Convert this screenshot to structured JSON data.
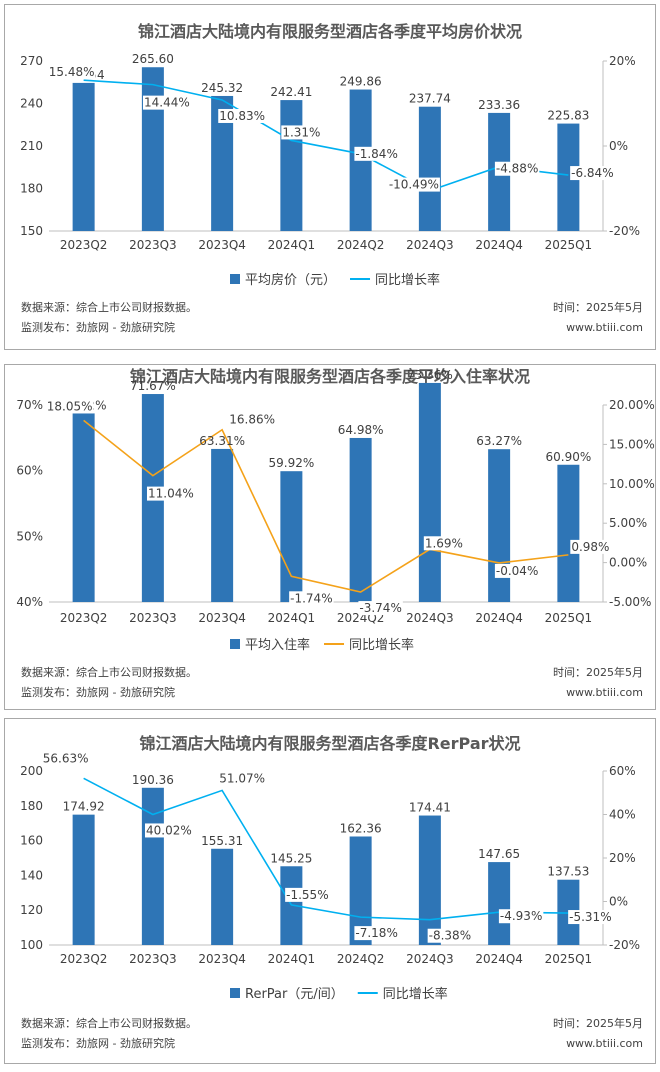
{
  "chart_data": [
    {
      "type": "bar",
      "title": "锦江酒店大陆境内有限服务型酒店各季度平均房价状况",
      "categories": [
        "2023Q2",
        "2023Q3",
        "2023Q4",
        "2024Q1",
        "2024Q2",
        "2024Q3",
        "2024Q4",
        "2025Q1"
      ],
      "series": [
        {
          "name": "平均房价（元）",
          "type": "bar",
          "axis": "left",
          "color": "#2e75b6",
          "values": [
            254.54,
            265.6,
            245.32,
            242.41,
            249.86,
            237.74,
            233.36,
            225.83
          ],
          "labels": [
            "254.54",
            "265.60",
            "245.32",
            "242.41",
            "249.86",
            "237.74",
            "233.36",
            "225.83"
          ]
        },
        {
          "name": "同比增长率",
          "type": "line",
          "axis": "right",
          "color": "#00b0f0",
          "values": [
            15.48,
            14.44,
            10.83,
            1.31,
            -1.84,
            -10.49,
            -4.88,
            -6.84
          ],
          "labels": [
            "15.48%",
            "14.44%",
            "10.83%",
            "1.31%",
            "-1.84%",
            "-10.49%",
            "-4.88%",
            "-6.84%"
          ]
        }
      ],
      "ylim": [
        150,
        270
      ],
      "yticks": [
        "150",
        "180",
        "210",
        "240",
        "270"
      ],
      "ylim_right": [
        -20,
        20
      ],
      "yticks_right": [
        "-20%",
        "0%",
        "20%"
      ],
      "legend_position": "bottom",
      "source": "数据来源：综合上市公司财报数据。",
      "publisher": "监测发布：劲旅网 - 劲旅研究院",
      "time": "时间：2025年5月",
      "site": "www.btiii.com"
    },
    {
      "type": "bar",
      "title": "锦江酒店大陆境内有限服务型酒店各季度平均入住率状况",
      "categories": [
        "2023Q2",
        "2023Q3",
        "2023Q4",
        "2024Q1",
        "2024Q2",
        "2024Q3",
        "2024Q4",
        "2025Q1"
      ],
      "series": [
        {
          "name": "平均入住率",
          "type": "bar",
          "axis": "left",
          "color": "#2e75b6",
          "values": [
            68.72,
            71.67,
            63.31,
            59.92,
            64.98,
            73.36,
            63.27,
            60.9
          ],
          "labels": [
            "68.72%",
            "71.67%",
            "63.31%",
            "59.92%",
            "64.98%",
            "73.36%",
            "63.27%",
            "60.90%"
          ]
        },
        {
          "name": "同比增长率",
          "type": "line",
          "axis": "right",
          "color": "#f4a21a",
          "values": [
            18.05,
            11.04,
            16.86,
            -1.74,
            -3.74,
            1.69,
            -0.04,
            0.98
          ],
          "labels": [
            "18.05%",
            "11.04%",
            "16.86%",
            "-1.74%",
            "-3.74%",
            "1.69%",
            "-0.04%",
            "0.98%"
          ]
        }
      ],
      "ylim": [
        40,
        70
      ],
      "yticks": [
        "40%",
        "50%",
        "60%",
        "70%"
      ],
      "ylim_right": [
        -5,
        20
      ],
      "yticks_right": [
        "-5.00%",
        "0.00%",
        "5.00%",
        "10.00%",
        "15.00%",
        "20.00%"
      ],
      "legend_position": "bottom",
      "source": "数据来源：综合上市公司财报数据。",
      "publisher": "监测发布：劲旅网 - 劲旅研究院",
      "time": "时间：2025年5月",
      "site": "www.btiii.com"
    },
    {
      "type": "bar",
      "title": "锦江酒店大陆境内有限服务型酒店各季度RerPar状况",
      "categories": [
        "2023Q2",
        "2023Q3",
        "2023Q4",
        "2024Q1",
        "2024Q2",
        "2024Q3",
        "2024Q4",
        "2025Q1"
      ],
      "series": [
        {
          "name": "RerPar（元/间）",
          "type": "bar",
          "axis": "left",
          "color": "#2e75b6",
          "values": [
            174.92,
            190.36,
            155.31,
            145.25,
            162.36,
            174.41,
            147.65,
            137.53
          ],
          "labels": [
            "174.92",
            "190.36",
            "155.31",
            "145.25",
            "162.36",
            "174.41",
            "147.65",
            "137.53"
          ]
        },
        {
          "name": "同比增长率",
          "type": "line",
          "axis": "right",
          "color": "#00b0f0",
          "values": [
            56.63,
            40.02,
            51.07,
            -1.55,
            -7.18,
            -8.38,
            -4.93,
            -5.31
          ],
          "labels": [
            "56.63%",
            "40.02%",
            "51.07%",
            "-1.55%",
            "-7.18%",
            "-8.38%",
            "-4.93%",
            "-5.31%"
          ]
        }
      ],
      "ylim": [
        100,
        200
      ],
      "yticks": [
        "100",
        "120",
        "140",
        "160",
        "180",
        "200"
      ],
      "ylim_right": [
        -20,
        60
      ],
      "yticks_right": [
        "-20%",
        "0%",
        "20%",
        "40%",
        "60%"
      ],
      "legend_position": "bottom",
      "source": "数据来源：综合上市公司财报数据。",
      "publisher": "监测发布：劲旅网 - 劲旅研究院",
      "time": "时间：2025年5月",
      "site": "www.btiii.com"
    }
  ]
}
